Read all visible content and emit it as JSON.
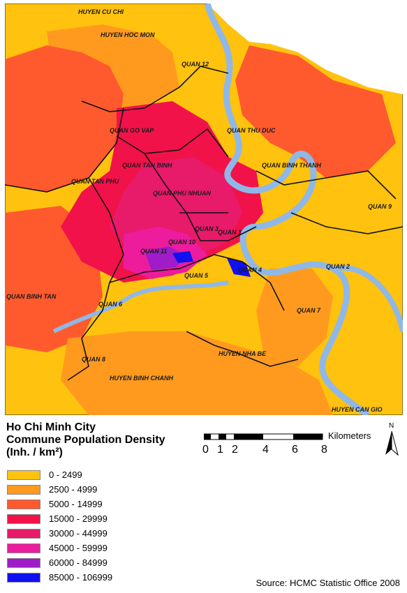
{
  "title_lines": [
    "Ho Chi Minh City",
    "Commune Population Density",
    "(Inh. / km²)"
  ],
  "legend": [
    {
      "label": "0 - 2499",
      "color": "#FFC20E"
    },
    {
      "label": "2500 - 4999",
      "color": "#FF9A1F"
    },
    {
      "label": "5000 - 14999",
      "color": "#FF5A2E"
    },
    {
      "label": "15000 - 29999",
      "color": "#F2124A"
    },
    {
      "label": "30000 - 44999",
      "color": "#E81A6A"
    },
    {
      "label": "45000 - 59999",
      "color": "#EC1C9C"
    },
    {
      "label": "60000 - 84999",
      "color": "#9F1CC8"
    },
    {
      "label": "85000 - 106999",
      "color": "#1010F0"
    }
  ],
  "scale": {
    "unit": "Kilometers",
    "ticks": [
      "0",
      "1",
      "2",
      "4",
      "6",
      "8"
    ]
  },
  "north_label": "N",
  "source": "Source: HCMC Statistic Office 2008",
  "districts": [
    "HUYEN CU CHI",
    "HUYEN HOC MON",
    "QUAN 12",
    "QUAN GO VAP",
    "QUAN THU DUC",
    "QUAN TAN BINH",
    "QUAN BINH THANH",
    "QUAN TAN PHU",
    "QUAN PHU NHUAN",
    "QUAN 9",
    "QUAN 3",
    "QUAN 1",
    "QUAN 10",
    "QUAN 11",
    "QUAN 4",
    "QUAN 2",
    "QUAN 5",
    "QUAN BINH TAN",
    "QUAN 6",
    "QUAN 7",
    "QUAN 8",
    "HUYEN NHA BE",
    "HUYEN BINH CHANH",
    "HUYEN CAN GIO"
  ],
  "colors": {
    "water": "#8FB8E8",
    "boundary": "#111111",
    "background": "#FFFFFF"
  }
}
